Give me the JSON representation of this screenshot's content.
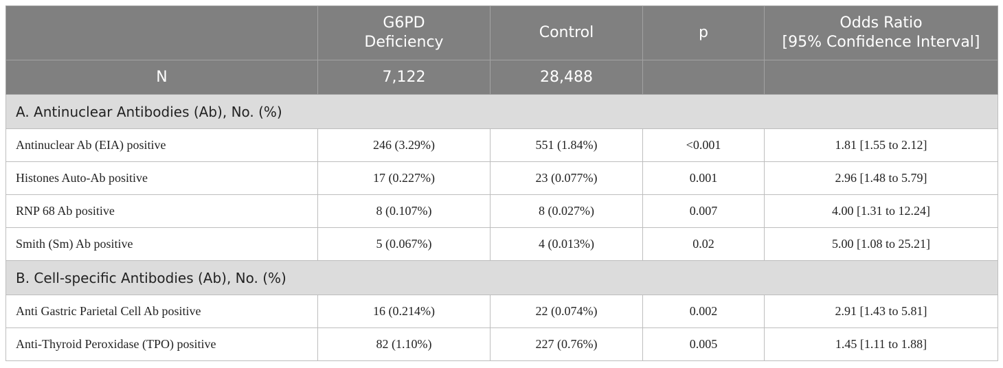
{
  "headers": {
    "col1": "",
    "col2_line1": "G6PD",
    "col2_line2": "Deficiency",
    "col3": "Control",
    "col4": "p",
    "col5_line1": "Odds Ratio",
    "col5_line2": "[95% Confidence Interval]"
  },
  "n_row": {
    "label": "N",
    "g6pd": "7,122",
    "control": "28,488",
    "p": "",
    "or": ""
  },
  "sections": [
    {
      "title": "A. Antinuclear Antibodies (Ab), No. (%)",
      "rows": [
        {
          "label": "Antinuclear Ab (EIA) positive",
          "g6pd": "246 (3.29%)",
          "control": "551 (1.84%)",
          "p": "<0.001",
          "or": "1.81 [1.55 to 2.12]"
        },
        {
          "label": "Histones Auto-Ab positive",
          "g6pd": "17 (0.227%)",
          "control": "23 (0.077%)",
          "p": "0.001",
          "or": "2.96 [1.48 to 5.79]"
        },
        {
          "label": "RNP 68 Ab positive",
          "g6pd": "8 (0.107%)",
          "control": "8 (0.027%)",
          "p": "0.007",
          "or": "4.00 [1.31 to 12.24]"
        },
        {
          "label": "Smith (Sm) Ab positive",
          "g6pd": "5 (0.067%)",
          "control": "4 (0.013%)",
          "p": "0.02",
          "or": "5.00 [1.08 to 25.21]"
        }
      ]
    },
    {
      "title": "B. Cell-specific Antibodies (Ab), No. (%)",
      "rows": [
        {
          "label": "Anti Gastric Parietal Cell Ab positive",
          "g6pd": "16 (0.214%)",
          "control": "22 (0.074%)",
          "p": "0.002",
          "or": "2.91 [1.43 to 5.81]"
        },
        {
          "label": "Anti-Thyroid Peroxidase (TPO) positive",
          "g6pd": "82 (1.10%)",
          "control": "227 (0.76%)",
          "p": "0.005",
          "or": "1.45 [1.11 to 1.88]"
        }
      ]
    }
  ]
}
